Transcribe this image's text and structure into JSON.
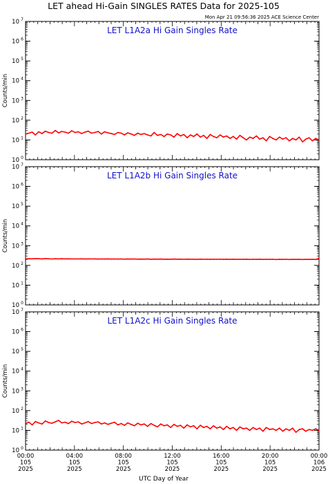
{
  "header": {
    "title": "LET ahead Hi-Gain SINGLES RATES Data for 2025-105",
    "timestamp": "Mon Apr 21 09:56:36 2025 ACE Science Center"
  },
  "colors": {
    "trace": "#ff0000",
    "panel_title": "#1010c8",
    "axes": "#000000"
  },
  "chart_data": [
    {
      "type": "line",
      "title": "LET L1A2a Hi Gain Singles Rate",
      "ylabel": "Counts/min",
      "xlabel": "",
      "scale_y": "log",
      "ylim": [
        1,
        10000000
      ],
      "y_ticks": [
        "10^0",
        "10^1",
        "10^2",
        "10^3",
        "10^4",
        "10^5",
        "10^6",
        "10^7"
      ],
      "series": [
        {
          "values": [
            20,
            22,
            25,
            18,
            26,
            21,
            28,
            24,
            22,
            30,
            23,
            27,
            25,
            22,
            29,
            24,
            26,
            21,
            25,
            28,
            22,
            24,
            27,
            20,
            26,
            23,
            21,
            19,
            24,
            22,
            18,
            23,
            20,
            17,
            22,
            19,
            21,
            18,
            16,
            24,
            17,
            19,
            15,
            20,
            18,
            14,
            21,
            16,
            19,
            13,
            18,
            15,
            20,
            14,
            17,
            12,
            19,
            15,
            13,
            18,
            14,
            16,
            12,
            15,
            11,
            17,
            13,
            10,
            14,
            12,
            16,
            11,
            13,
            9,
            15,
            12,
            10,
            14,
            11,
            13,
            9,
            12,
            10,
            14,
            8,
            11,
            13,
            9,
            12,
            10
          ]
        }
      ]
    },
    {
      "type": "line",
      "title": "LET L1A2b Hi Gain Singles Rate",
      "ylabel": "Counts/min",
      "xlabel": "",
      "scale_y": "log",
      "ylim": [
        1,
        10000000
      ],
      "y_ticks": [
        "10^0",
        "10^1",
        "10^2",
        "10^3",
        "10^4",
        "10^5",
        "10^6",
        "10^7"
      ],
      "series": [
        {
          "values": [
            215,
            218,
            216,
            220,
            217,
            214,
            219,
            216,
            213,
            218,
            215,
            217,
            214,
            216,
            212,
            215,
            213,
            216,
            211,
            214,
            212,
            215,
            210,
            213,
            211,
            214,
            209,
            212,
            210,
            213,
            208,
            211,
            209,
            212,
            207,
            210,
            208,
            211,
            206,
            209,
            207,
            210,
            205,
            208,
            206,
            209,
            205,
            207,
            204,
            208,
            205,
            206,
            203,
            207,
            204,
            205,
            203,
            206,
            204,
            205,
            202,
            206,
            203,
            205,
            202,
            204,
            203,
            205,
            201,
            204,
            202,
            205,
            201,
            203,
            202,
            204,
            200,
            203,
            201,
            204,
            200,
            202,
            201,
            203,
            200,
            202,
            201,
            203,
            200,
            230
          ]
        }
      ]
    },
    {
      "type": "line",
      "title": "LET L1A2c Hi Gain Singles Rate",
      "ylabel": "Counts/min",
      "xlabel": "UTC Day of Year",
      "scale_y": "log",
      "ylim": [
        1,
        10000000
      ],
      "y_ticks": [
        "10^0",
        "10^1",
        "10^2",
        "10^3",
        "10^4",
        "10^5",
        "10^6",
        "10^7"
      ],
      "x_ticks": [
        [
          "00:00",
          "105",
          "2025"
        ],
        [
          "04:00",
          "105",
          "2025"
        ],
        [
          "08:00",
          "105",
          "2025"
        ],
        [
          "12:00",
          "105",
          "2025"
        ],
        [
          "16:00",
          "105",
          "2025"
        ],
        [
          "20:00",
          "105",
          "2025"
        ],
        [
          "00:00",
          "106",
          "2025"
        ]
      ],
      "series": [
        {
          "values": [
            22,
            26,
            19,
            28,
            24,
            21,
            30,
            25,
            23,
            27,
            32,
            24,
            26,
            22,
            29,
            25,
            27,
            21,
            24,
            28,
            22,
            25,
            27,
            21,
            24,
            20,
            23,
            26,
            19,
            22,
            18,
            24,
            20,
            17,
            23,
            19,
            21,
            16,
            22,
            18,
            15,
            21,
            17,
            19,
            14,
            20,
            16,
            18,
            13,
            19,
            15,
            17,
            12,
            18,
            14,
            16,
            12,
            17,
            13,
            15,
            11,
            16,
            12,
            14,
            10,
            15,
            12,
            13,
            10,
            14,
            11,
            13,
            9,
            14,
            11,
            12,
            10,
            13,
            9,
            12,
            10,
            13,
            8,
            11,
            12,
            9,
            11,
            10,
            12,
            10
          ]
        }
      ]
    }
  ]
}
